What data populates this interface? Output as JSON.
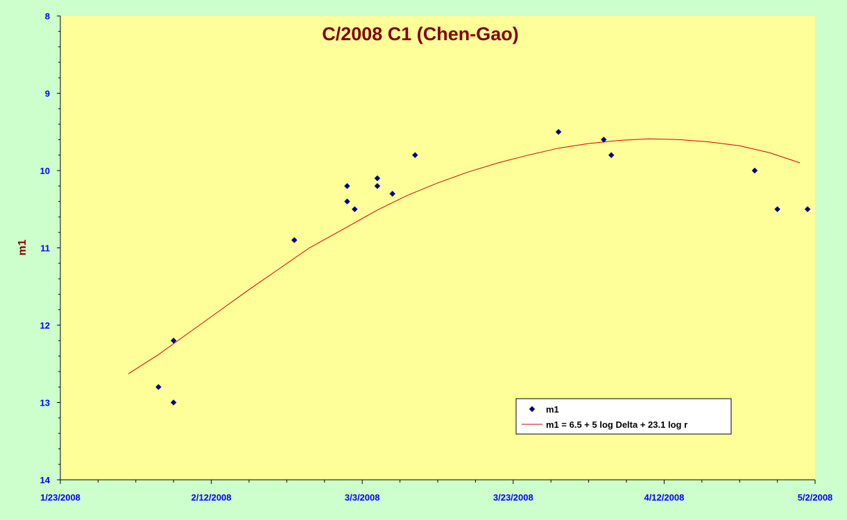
{
  "chart_data": {
    "type": "scatter",
    "title": "C/2008 C1 (Chen-Gao)",
    "xlabel": "",
    "ylabel": "m1",
    "x_type": "date",
    "xlim": [
      "2008-01-23",
      "2008-05-02"
    ],
    "x_ticks": [
      "1/23/2008",
      "2/12/2008",
      "3/3/2008",
      "3/23/2008",
      "4/12/2008",
      "5/2/2008"
    ],
    "x_tick_dates": [
      "2008-01-23",
      "2008-02-12",
      "2008-03-03",
      "2008-03-23",
      "2008-04-12",
      "2008-05-02"
    ],
    "ylim": [
      8,
      14
    ],
    "y_inverted": true,
    "y_ticks": [
      8,
      9,
      10,
      11,
      12,
      13,
      14
    ],
    "grid": false,
    "legend_position": "bottom-right",
    "series": [
      {
        "name": "m1",
        "type": "scatter",
        "marker": "diamond",
        "color": "#000080",
        "points": [
          {
            "x": "2008-02-05 00:00",
            "y": 12.8
          },
          {
            "x": "2008-02-07 00:00",
            "y": 12.2
          },
          {
            "x": "2008-02-07 00:00",
            "y": 13.0
          },
          {
            "x": "2008-02-23 00:00",
            "y": 10.9
          },
          {
            "x": "2008-03-01 00:00",
            "y": 10.2
          },
          {
            "x": "2008-03-01 00:00",
            "y": 10.4
          },
          {
            "x": "2008-03-02 00:00",
            "y": 10.5
          },
          {
            "x": "2008-03-05 00:00",
            "y": 10.1
          },
          {
            "x": "2008-03-05 00:00",
            "y": 10.2
          },
          {
            "x": "2008-03-07 00:00",
            "y": 10.3
          },
          {
            "x": "2008-03-10 00:00",
            "y": 9.8
          },
          {
            "x": "2008-03-29 00:00",
            "y": 9.5
          },
          {
            "x": "2008-04-04 00:00",
            "y": 9.6
          },
          {
            "x": "2008-04-05 00:00",
            "y": 9.8
          },
          {
            "x": "2008-04-24 00:00",
            "y": 10.0
          },
          {
            "x": "2008-04-27 00:00",
            "y": 10.5
          },
          {
            "x": "2008-05-01 00:00",
            "y": 10.5
          }
        ]
      },
      {
        "name": "m1 = 6.5 + 5 log Delta + 23.1 log r",
        "type": "line",
        "color": "#cc0000",
        "points": [
          {
            "x": "2008-02-01 00:00",
            "y": 12.63
          },
          {
            "x": "2008-02-05 00:00",
            "y": 12.38
          },
          {
            "x": "2008-02-09 00:00",
            "y": 12.1
          },
          {
            "x": "2008-02-13 00:00",
            "y": 11.82
          },
          {
            "x": "2008-02-17 00:00",
            "y": 11.54
          },
          {
            "x": "2008-02-21 00:00",
            "y": 11.27
          },
          {
            "x": "2008-02-25 00:00",
            "y": 11.0
          },
          {
            "x": "2008-03-01 00:00",
            "y": 10.73
          },
          {
            "x": "2008-03-05 00:00",
            "y": 10.51
          },
          {
            "x": "2008-03-09 00:00",
            "y": 10.32
          },
          {
            "x": "2008-03-13 00:00",
            "y": 10.16
          },
          {
            "x": "2008-03-17 00:00",
            "y": 10.02
          },
          {
            "x": "2008-03-21 00:00",
            "y": 9.9
          },
          {
            "x": "2008-03-25 00:00",
            "y": 9.8
          },
          {
            "x": "2008-03-29 00:00",
            "y": 9.71
          },
          {
            "x": "2008-04-02 00:00",
            "y": 9.65
          },
          {
            "x": "2008-04-06 00:00",
            "y": 9.61
          },
          {
            "x": "2008-04-10 00:00",
            "y": 9.59
          },
          {
            "x": "2008-04-14 00:00",
            "y": 9.6
          },
          {
            "x": "2008-04-18 00:00",
            "y": 9.63
          },
          {
            "x": "2008-04-22 00:00",
            "y": 9.68
          },
          {
            "x": "2008-04-26 00:00",
            "y": 9.77
          },
          {
            "x": "2008-04-30 00:00",
            "y": 9.9
          }
        ]
      }
    ],
    "colors": {
      "page_background": "#ccffcc",
      "plot_background": "#ffff99",
      "axis": "#000000",
      "tick_labels": "#0000ff",
      "title": "#800000",
      "ylabel": "#800000"
    }
  }
}
